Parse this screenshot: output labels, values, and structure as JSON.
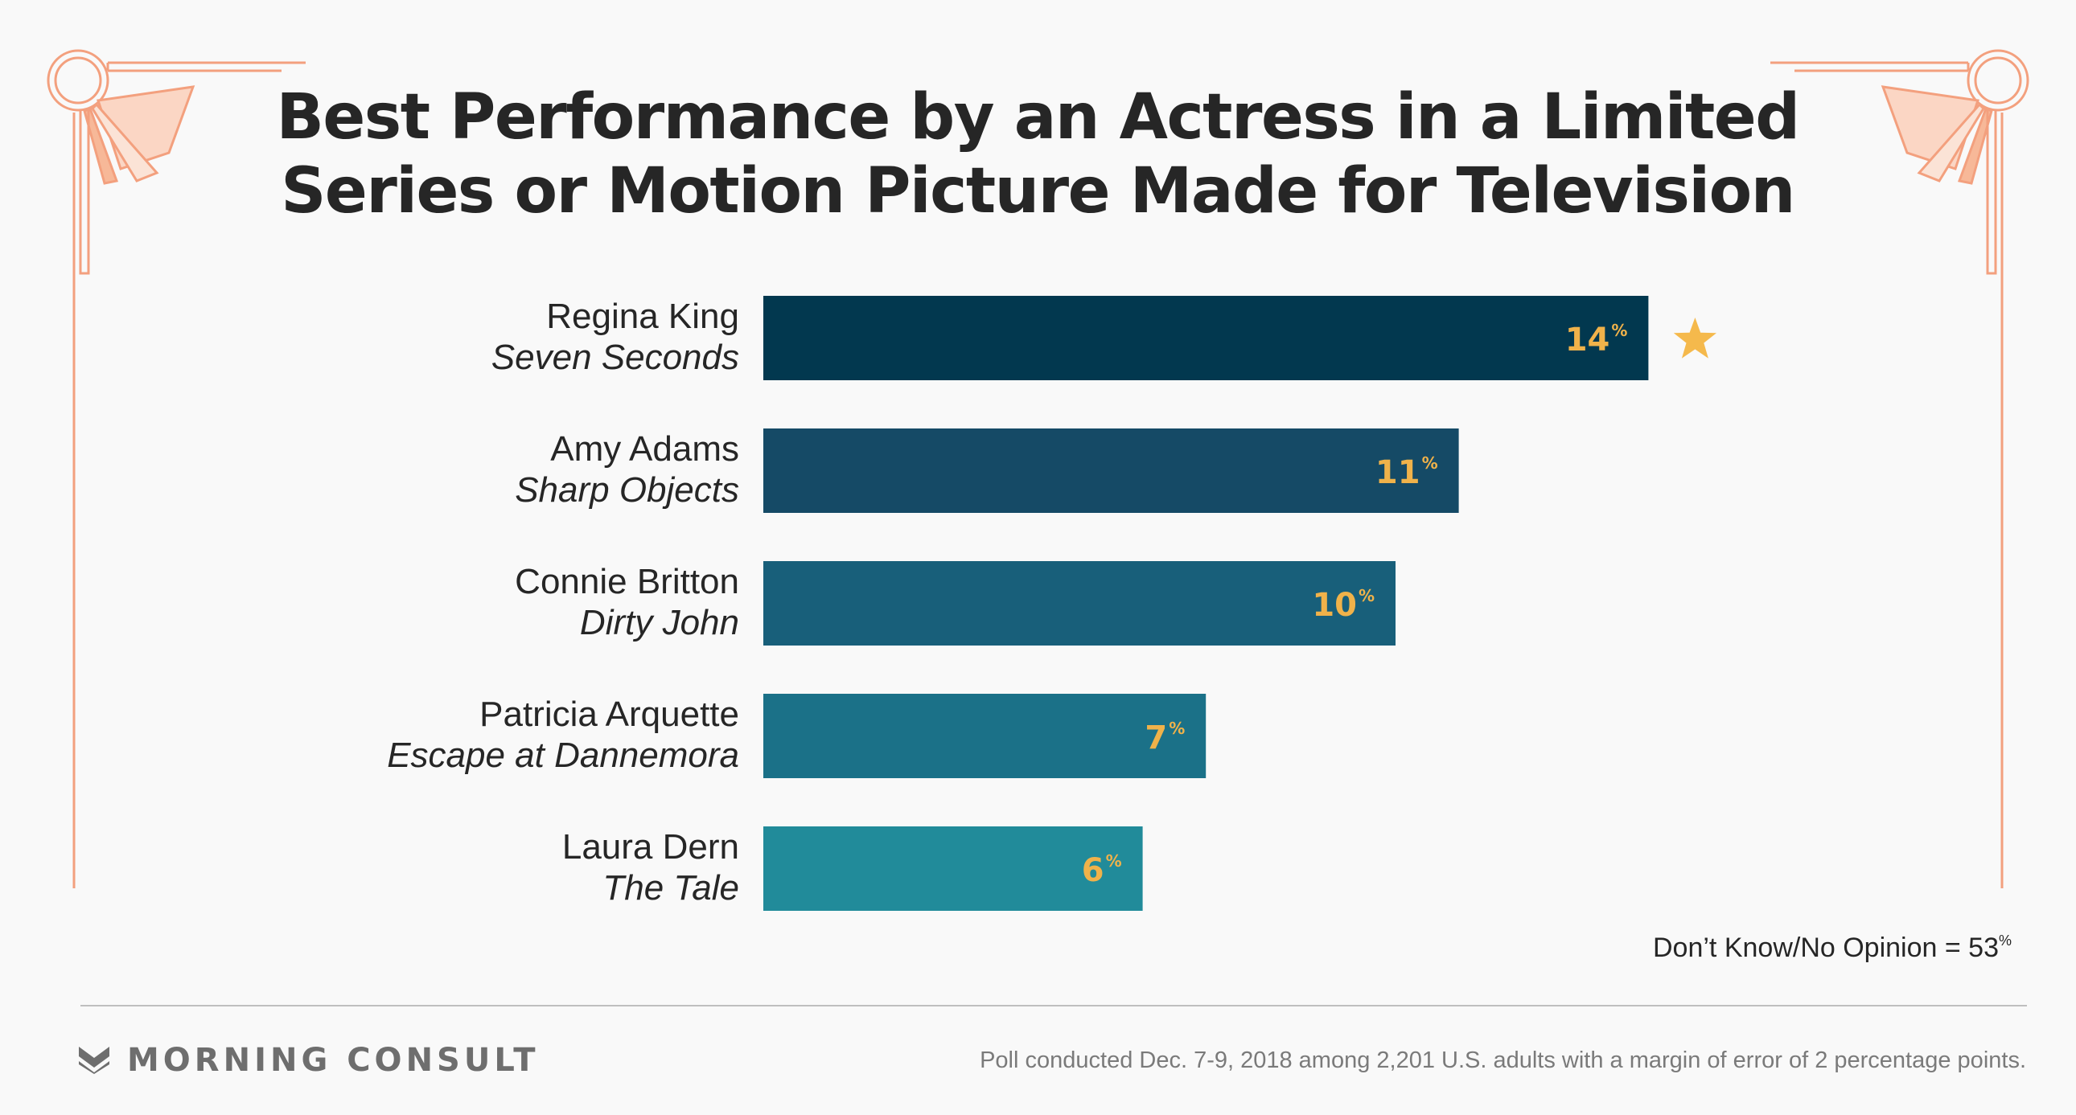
{
  "chart_data": {
    "type": "bar",
    "orientation": "horizontal",
    "title": [
      "Best Performance by an Actress in a Limited",
      "Series or Motion Picture Made for Television"
    ],
    "categories": [
      "Regina King",
      "Amy Adams",
      "Connie Britton",
      "Patricia Arquette",
      "Laura Dern"
    ],
    "subtitles": [
      "Seven Seconds",
      "Sharp Objects",
      "Dirty John",
      "Escape at Dannemora",
      "The Tale"
    ],
    "values": [
      14,
      11,
      10,
      7,
      6
    ],
    "value_suffix": "%",
    "bar_colors": [
      "#02384f",
      "#154a66",
      "#185f7a",
      "#1b7188",
      "#218b9a"
    ],
    "label_color": "#f0b24a",
    "winner_index": 0,
    "winner_marker": "star-icon",
    "no_opinion": {
      "label": "Don’t Know/No Opinion = 53",
      "suffix": "%"
    }
  },
  "footer": {
    "brand": "MORNING CONSULT",
    "source": "Poll conducted Dec. 7-9, 2018 among 2,201 U.S. adults with a margin of error of 2 percentage points."
  },
  "colors": {
    "background": "#f9f9f9",
    "ornament": "#f3a07e",
    "text": "#262626"
  }
}
